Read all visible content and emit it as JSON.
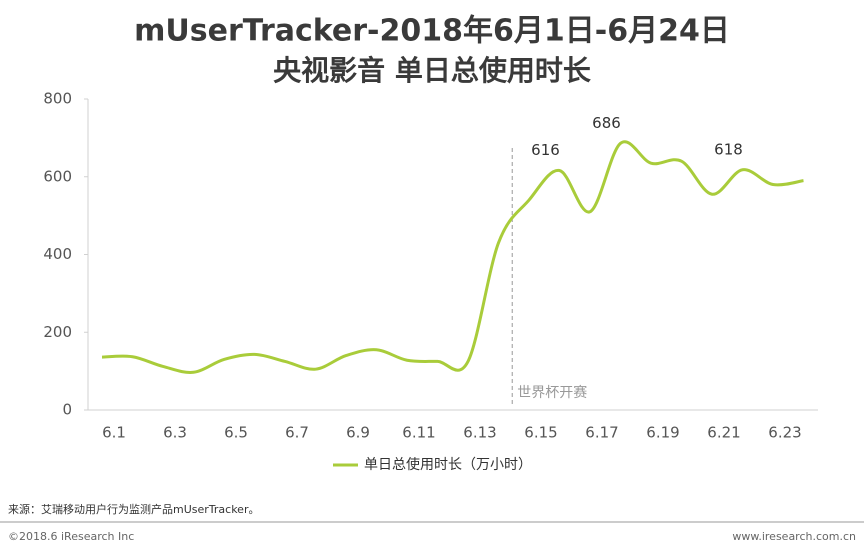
{
  "chart_data": {
    "type": "line",
    "title": "mUserTracker-2018年6月1日-6月24日",
    "subtitle": "央视影音 单日总使用时长",
    "categories": [
      "6.1",
      null,
      "6.3",
      null,
      "6.5",
      null,
      "6.7",
      null,
      "6.9",
      null,
      "6.11",
      null,
      "6.13",
      null,
      "6.15",
      null,
      "6.17",
      null,
      "6.19",
      null,
      "6.21",
      null,
      "6.23",
      null
    ],
    "series": [
      {
        "name": "单日总使用时长（万小时）",
        "color": "#a9cc3a",
        "values": [
          136,
          137,
          112,
          97,
          130,
          143,
          125,
          105,
          140,
          155,
          128,
          125,
          125,
          430,
          540,
          616,
          510,
          686,
          635,
          640,
          555,
          618,
          580,
          590
        ]
      }
    ],
    "labeled_points": [
      15,
      17,
      21
    ],
    "annotation": "世界杯开赛",
    "ylim": [
      0,
      800
    ],
    "yticks": [
      0,
      200,
      400,
      600,
      800
    ],
    "source": "来源：艾瑞移动用户行为监测产品mUserTracker。",
    "copyright": "©2018.6 iResearch Inc",
    "website": "www.iresearch.com.cn"
  }
}
